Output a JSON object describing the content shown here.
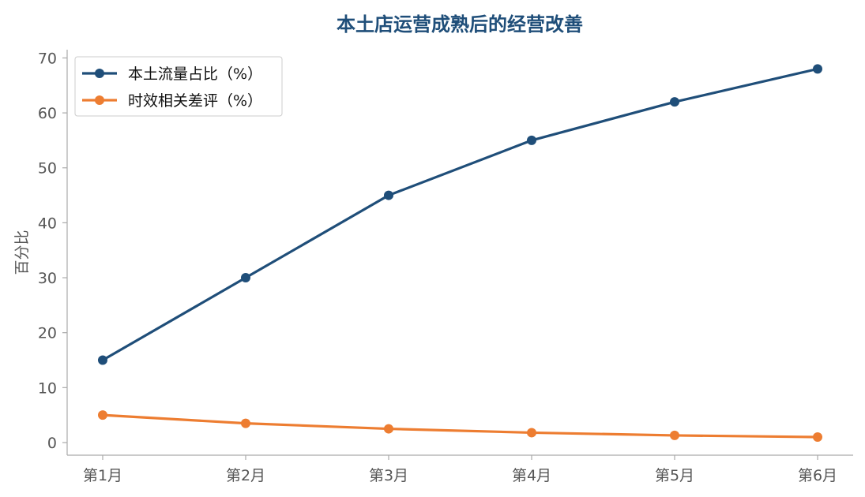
{
  "chart_data": {
    "type": "line",
    "title": "本土店运营成熟后的经营改善",
    "xlabel": "",
    "ylabel": "百分比",
    "categories": [
      "第1月",
      "第2月",
      "第3月",
      "第4月",
      "第5月",
      "第6月"
    ],
    "ylim": [
      -2.3,
      71.5
    ],
    "yticks": [
      0,
      10,
      20,
      30,
      40,
      50,
      60,
      70
    ],
    "grid": false,
    "legend_position": "top-left",
    "series": [
      {
        "name": "本土流量占比（%）",
        "color": "#1f4e79",
        "values": [
          15,
          30,
          45,
          55,
          62,
          68
        ]
      },
      {
        "name": "时效相关差评（%）",
        "color": "#ed7d31",
        "values": [
          5,
          3.5,
          2.5,
          1.8,
          1.3,
          1.0
        ]
      }
    ]
  }
}
